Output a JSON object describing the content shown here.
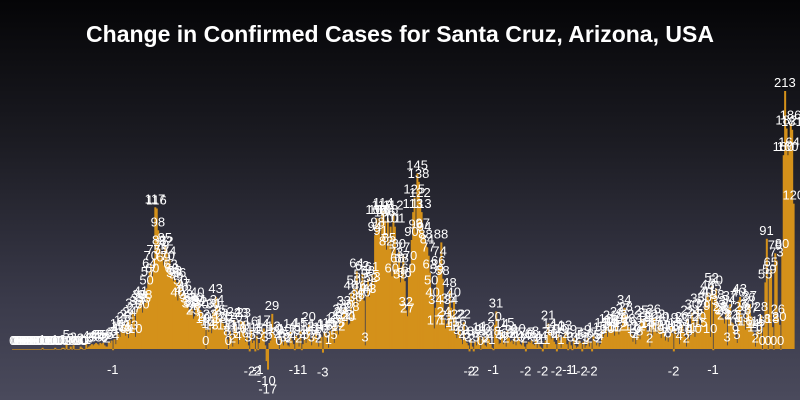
{
  "chart_data": {
    "type": "bar",
    "title": "Change in Confirmed Cases for Santa Cruz, Arizona, USA",
    "xlabel": "",
    "ylabel": "",
    "bar_color": "#d4911a",
    "ylim": [
      -20,
      230
    ],
    "values": [
      0,
      0,
      0,
      0,
      0,
      0,
      0,
      0,
      0,
      0,
      0,
      0,
      0,
      0,
      0,
      0,
      0,
      0,
      0,
      0,
      0,
      1,
      0,
      0,
      0,
      0,
      0,
      0,
      0,
      0,
      1,
      0,
      0,
      0,
      0,
      1,
      1,
      0,
      5,
      0,
      0,
      2,
      0,
      3,
      0,
      0,
      0,
      0,
      2,
      1,
      0,
      0,
      4,
      1,
      2,
      3,
      4,
      3,
      4,
      5,
      4,
      3,
      5,
      4,
      5,
      3,
      2,
      2,
      6,
      5,
      7,
      -1,
      8,
      4,
      14,
      12,
      10,
      17,
      13,
      20,
      11,
      22,
      9,
      24,
      13,
      31,
      27,
      10,
      33,
      35,
      38,
      41,
      30,
      35,
      38,
      50,
      57,
      64,
      70,
      60,
      75,
      117,
      116,
      98,
      83,
      75,
      79,
      69,
      85,
      82,
      70,
      74,
      63,
      60,
      56,
      58,
      55,
      40,
      56,
      50,
      42,
      47,
      45,
      38,
      35,
      31,
      32,
      33,
      25,
      27,
      36,
      40,
      34,
      32,
      30,
      18,
      20,
      0,
      16,
      14,
      22,
      13,
      30,
      31,
      43,
      34,
      26,
      18,
      25,
      21,
      13,
      20,
      8,
      0,
      15,
      11,
      2,
      24,
      20,
      13,
      4,
      10,
      23,
      13,
      23,
      6,
      11,
      3,
      -2,
      16,
      5,
      7,
      -2,
      11,
      -1,
      5,
      10,
      14,
      17,
      3,
      -10,
      -17,
      5,
      7,
      29,
      12,
      10,
      8,
      4,
      0,
      9,
      6,
      3,
      10,
      5,
      3,
      2,
      14,
      7,
      4,
      -1,
      11,
      9,
      2,
      15,
      -1,
      4,
      9,
      5,
      12,
      20,
      8,
      3,
      11,
      9,
      14,
      5,
      2,
      7,
      10,
      -3,
      14,
      13,
      6,
      1,
      15,
      13,
      18,
      5,
      20,
      15,
      12,
      26,
      24,
      27,
      33,
      22,
      30,
      20,
      21,
      46,
      28,
      50,
      36,
      64,
      38,
      46,
      55,
      62,
      40,
      3,
      44,
      58,
      43,
      52,
      61,
      53,
      94,
      108,
      98,
      108,
      91,
      112,
      114,
      106,
      82,
      108,
      85,
      101,
      60,
      112,
      101,
      73,
      68,
      80,
      55,
      68,
      77,
      56,
      32,
      27,
      60,
      70,
      90,
      113,
      125,
      96,
      145,
      138,
      122,
      113,
      97,
      94,
      88,
      84,
      77,
      63,
      50,
      40,
      17,
      34,
      59,
      66,
      74,
      88,
      58,
      24,
      17,
      21,
      35,
      48,
      34,
      15,
      40,
      12,
      9,
      22,
      16,
      8,
      4,
      22,
      9,
      5,
      3,
      -2,
      8,
      2,
      -2,
      6,
      3,
      9,
      11,
      0,
      8,
      10,
      3,
      2,
      12,
      8,
      4,
      1,
      -1,
      20,
      31,
      8,
      4,
      5,
      14,
      4,
      6,
      2,
      15,
      9,
      6,
      7,
      4,
      9,
      3,
      7,
      10,
      4,
      3,
      7,
      2,
      -2,
      4,
      6,
      5,
      7,
      4,
      3,
      8,
      1,
      4,
      2,
      1,
      -2,
      4,
      7,
      1,
      21,
      14,
      8,
      10,
      6,
      4,
      -2,
      12,
      7,
      1,
      10,
      9,
      13,
      4,
      -1,
      6,
      3,
      -1,
      9,
      3,
      1,
      2,
      7,
      5,
      -2,
      6,
      1,
      3,
      9,
      2,
      6,
      -2,
      11,
      7,
      3,
      5,
      2,
      4,
      15,
      9,
      12,
      18,
      10,
      14,
      21,
      17,
      16,
      11,
      18,
      24,
      12,
      15,
      20,
      27,
      34,
      28,
      22,
      18,
      16,
      12,
      6,
      10,
      4,
      9,
      12,
      8,
      25,
      21,
      19,
      23,
      14,
      15,
      2,
      20,
      11,
      26,
      17,
      13,
      22,
      16,
      9,
      20,
      13,
      7,
      10,
      6,
      11,
      19,
      13,
      -2,
      15,
      9,
      12,
      4,
      18,
      20,
      14,
      10,
      2,
      25,
      8,
      11,
      30,
      24,
      10,
      22,
      35,
      20,
      15,
      31,
      29,
      36,
      40,
      46,
      41,
      10,
      52,
      -1,
      45,
      50,
      38,
      33,
      28,
      26,
      25,
      21,
      30,
      3,
      34,
      37,
      22,
      21,
      16,
      9,
      5,
      40,
      43,
      28,
      19,
      25,
      16,
      30,
      36,
      37,
      27,
      14,
      11,
      2,
      14,
      16,
      9,
      28,
      0,
      18,
      55,
      91,
      0,
      59,
      65,
      18,
      0,
      79,
      73,
      26,
      20,
      0,
      80,
      160,
      213,
      182,
      160,
      164,
      186,
      181,
      120
    ]
  }
}
